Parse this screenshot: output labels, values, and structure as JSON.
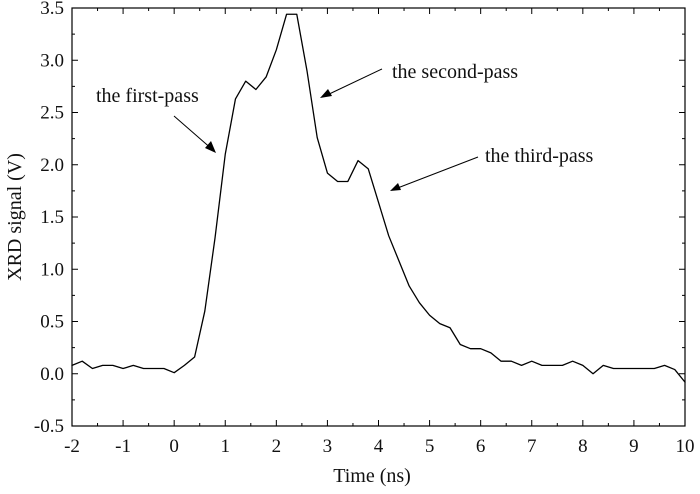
{
  "chart_data": {
    "type": "line",
    "title": "",
    "xlabel": "Time (ns)",
    "ylabel": "XRD signal (V)",
    "xlim": [
      -2,
      10
    ],
    "ylim": [
      -0.5,
      3.5
    ],
    "x_ticks": [
      -2,
      -1,
      0,
      1,
      2,
      3,
      4,
      5,
      6,
      7,
      8,
      9,
      10
    ],
    "y_ticks": [
      -0.5,
      0.0,
      0.5,
      1.0,
      1.5,
      2.0,
      2.5,
      3.0,
      3.5
    ],
    "x_tick_labels": [
      "-2",
      "-1",
      "0",
      "1",
      "2",
      "3",
      "4",
      "5",
      "6",
      "7",
      "8",
      "9",
      "10"
    ],
    "y_tick_labels": [
      "-0.5",
      "0.0",
      "0.5",
      "1.0",
      "1.5",
      "2.0",
      "2.5",
      "3.0",
      "3.5"
    ],
    "grid": false,
    "series": [
      {
        "color": "#000000",
        "x": [
          -2.0,
          -1.8,
          -1.6,
          -1.4,
          -1.2,
          -1.0,
          -0.8,
          -0.6,
          -0.4,
          -0.2,
          0.0,
          0.2,
          0.4,
          0.6,
          0.8,
          1.0,
          1.2,
          1.4,
          1.6,
          1.8,
          2.0,
          2.2,
          2.4,
          2.6,
          2.8,
          3.0,
          3.2,
          3.4,
          3.6,
          3.8,
          4.0,
          4.2,
          4.4,
          4.6,
          4.8,
          5.0,
          5.2,
          5.4,
          5.6,
          5.8,
          6.0,
          6.2,
          6.4,
          6.6,
          6.8,
          7.0,
          7.2,
          7.4,
          7.6,
          7.8,
          8.0,
          8.2,
          8.4,
          8.6,
          8.8,
          9.0,
          9.2,
          9.4,
          9.6,
          9.8,
          10.0
        ],
        "y": [
          0.08,
          0.12,
          0.05,
          0.08,
          0.08,
          0.05,
          0.08,
          0.05,
          0.05,
          0.05,
          0.01,
          0.08,
          0.16,
          0.6,
          1.3,
          2.1,
          2.63,
          2.8,
          2.72,
          2.84,
          3.1,
          3.44,
          3.44,
          2.9,
          2.26,
          1.92,
          1.84,
          1.84,
          2.04,
          1.96,
          1.64,
          1.32,
          1.08,
          0.84,
          0.68,
          0.56,
          0.48,
          0.44,
          0.28,
          0.24,
          0.24,
          0.2,
          0.12,
          0.12,
          0.08,
          0.12,
          0.08,
          0.08,
          0.08,
          0.12,
          0.08,
          0.0,
          0.08,
          0.05,
          0.05,
          0.05,
          0.05,
          0.05,
          0.08,
          0.04,
          -0.08
        ]
      }
    ],
    "annotations": [
      {
        "text": "the first-pass",
        "arrow_to": [
          1.0,
          2.27
        ]
      },
      {
        "text": "the second-pass",
        "arrow_to": [
          2.85,
          2.8
        ]
      },
      {
        "text": "the third-pass",
        "arrow_to": [
          4.1,
          1.84
        ]
      }
    ]
  }
}
